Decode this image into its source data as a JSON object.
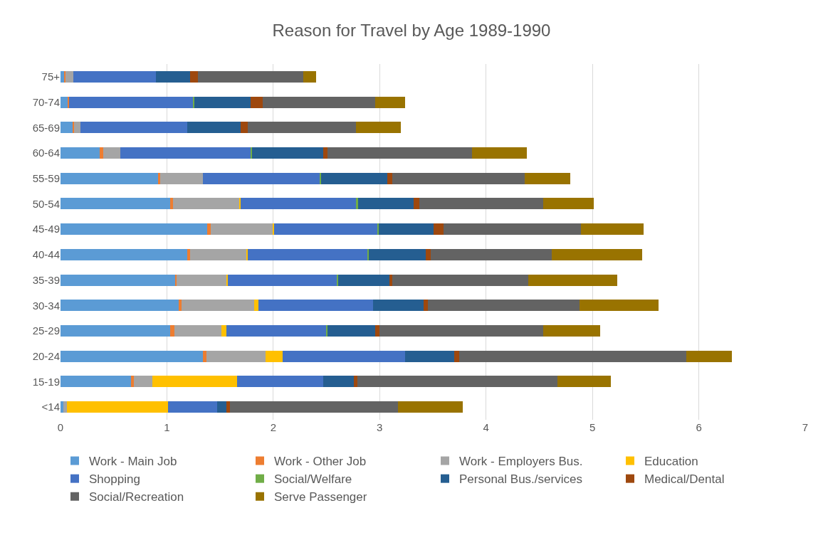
{
  "chart_data": {
    "type": "bar",
    "orientation": "horizontal",
    "stacked": true,
    "title": "Reason for Travel by Age 1989-1990",
    "categories": [
      "75+",
      "70-74",
      "65-69",
      "60-64",
      "55-59",
      "50-54",
      "45-49",
      "40-44",
      "35-39",
      "30-34",
      "25-29",
      "20-24",
      "15-19",
      "<14"
    ],
    "series": [
      {
        "name": "Work - Main Job",
        "color": "#5b9bd5",
        "values": [
          0.04,
          0.07,
          0.12,
          0.37,
          0.92,
          1.03,
          1.38,
          1.19,
          1.08,
          1.11,
          1.03,
          1.34,
          0.66,
          0.03
        ]
      },
      {
        "name": "Work - Other Job",
        "color": "#ed7d31",
        "values": [
          0.01,
          0.01,
          0.01,
          0.03,
          0.02,
          0.03,
          0.03,
          0.03,
          0.01,
          0.03,
          0.04,
          0.03,
          0.03,
          0
        ]
      },
      {
        "name": "Work - Employers Bus.",
        "color": "#a5a5a5",
        "values": [
          0.07,
          0,
          0.06,
          0.16,
          0.4,
          0.62,
          0.59,
          0.53,
          0.47,
          0.68,
          0.44,
          0.56,
          0.17,
          0.03
        ]
      },
      {
        "name": "Education",
        "color": "#ffc000",
        "values": [
          0,
          0,
          0,
          0,
          0,
          0.01,
          0.01,
          0.01,
          0.01,
          0.04,
          0.05,
          0.16,
          0.8,
          0.95
        ]
      },
      {
        "name": "Shopping",
        "color": "#4472c4",
        "values": [
          0.78,
          1.17,
          1.0,
          1.23,
          1.1,
          1.09,
          0.97,
          1.13,
          1.03,
          1.08,
          0.94,
          1.15,
          0.81,
          0.46
        ]
      },
      {
        "name": "Social/Welfare",
        "color": "#70ad47",
        "values": [
          0,
          0.01,
          0,
          0.01,
          0.01,
          0.02,
          0.01,
          0.01,
          0.01,
          0,
          0.01,
          0,
          0,
          0
        ]
      },
      {
        "name": "Personal Bus./services",
        "color": "#255e91",
        "values": [
          0.32,
          0.53,
          0.5,
          0.67,
          0.62,
          0.52,
          0.52,
          0.53,
          0.48,
          0.47,
          0.45,
          0.46,
          0.29,
          0.09
        ]
      },
      {
        "name": "Medical/Dental",
        "color": "#9e480e",
        "values": [
          0.07,
          0.11,
          0.07,
          0.04,
          0.05,
          0.05,
          0.09,
          0.05,
          0.03,
          0.04,
          0.04,
          0.05,
          0.03,
          0.03
        ]
      },
      {
        "name": "Social/Recreation",
        "color": "#636363",
        "values": [
          0.99,
          1.06,
          1.02,
          1.36,
          1.24,
          1.17,
          1.29,
          1.14,
          1.28,
          1.43,
          1.54,
          2.13,
          1.88,
          1.58
        ]
      },
      {
        "name": "Serve Passenger",
        "color": "#997300",
        "values": [
          0.12,
          0.28,
          0.42,
          0.51,
          0.43,
          0.47,
          0.59,
          0.85,
          0.83,
          0.74,
          0.53,
          0.43,
          0.5,
          0.61
        ]
      }
    ],
    "xlim": [
      0,
      7
    ],
    "xticks": [
      0,
      1,
      2,
      3,
      4,
      5,
      6,
      7
    ],
    "grid": "x",
    "legend": "bottom"
  }
}
